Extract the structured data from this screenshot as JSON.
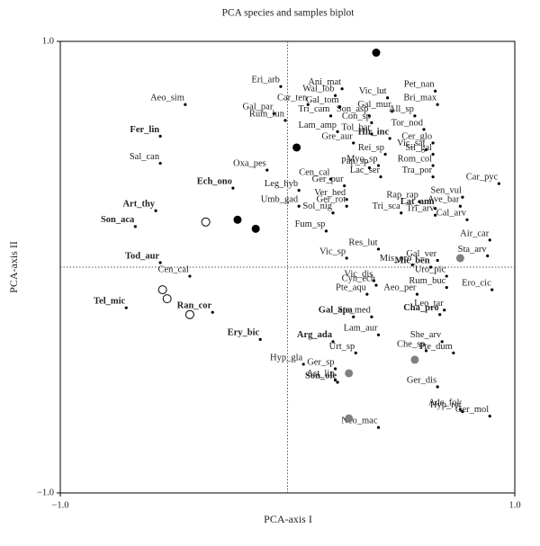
{
  "chart_data": {
    "type": "scatter",
    "title": "PCA species and samples biplot",
    "x_label": "PCA-axis I",
    "y_label": "PCA-axis II",
    "xlim": [
      -1,
      1
    ],
    "ylim": [
      -1,
      1
    ],
    "xticks": [
      {
        "value": -1,
        "label": "−1.0"
      },
      {
        "value": 1,
        "label": "1.0"
      }
    ],
    "yticks": [
      {
        "value": -1,
        "label": "−1.0"
      },
      {
        "value": 1,
        "label": "1.0"
      }
    ],
    "zero_lines": true,
    "series": [
      {
        "marker": "dot",
        "color": "#000000",
        "bold": false,
        "labels": [
          "Aeo_sim",
          "Sal_can",
          "Eri_arb",
          "Ani_mat",
          "Pet_nan",
          "Wal_lob",
          "Vic_lut",
          "Bri_max",
          "Car_ten",
          "Gal_tom",
          "Gal_mur",
          "All_sp",
          "Gal_par",
          "Tri_cam",
          "Son_asp",
          "Con_sp",
          "Rum_lun",
          "Tor_nod",
          "Lam_amp",
          "Tol_bar",
          "Gre_aur",
          "Rei_sp",
          "Cer_glo",
          "Vic_sat",
          "Sil_gal",
          "Myo_sp",
          "Pap_sp",
          "Rom_col",
          "Oxa_pes",
          "Cen_cal",
          "Lac_ser",
          "Tra_por",
          "Ger_pur",
          "Car_pyc",
          "Leg_hyb",
          "Sen_vul",
          "Umb_gad",
          "Ver_hed",
          "Rap_rap",
          "Ger_rot",
          "Ave_bar",
          "Sol_nig",
          "Tri_sca",
          "Tri_arv",
          "Cal_arv",
          "Fum_sp",
          "Air_car",
          "Res_lut",
          "Sta_arv",
          "Gal_ver",
          "Vic_sp",
          "Mis_oro",
          "Uro_pic",
          "Cen_cal",
          "Vic_dis",
          "Rum_buc",
          "Cyn_ech",
          "Ero_cic",
          "Pte_aqu",
          "Aeo_per",
          "Ste_med",
          "Leo_tar",
          "Lam_aur",
          "Urt_sp",
          "She_arv",
          "Che_sp",
          "Pte_dum",
          "Hyp_gla",
          "Ger_sp",
          "Ast_lin",
          "Ger_dis",
          "Ade_fol",
          "Hyp_ref",
          "Ger_mol",
          "Neo_mac"
        ],
        "x": [
          -0.45,
          -0.56,
          -0.03,
          0.24,
          0.65,
          0.21,
          0.44,
          0.66,
          0.09,
          0.23,
          0.46,
          0.56,
          -0.06,
          0.19,
          0.36,
          0.37,
          -0.01,
          0.6,
          0.22,
          0.37,
          0.29,
          0.43,
          0.64,
          0.61,
          0.64,
          0.4,
          0.36,
          0.64,
          -0.09,
          0.19,
          0.41,
          0.64,
          0.25,
          0.93,
          0.05,
          0.77,
          0.05,
          0.26,
          0.58,
          0.26,
          0.76,
          0.2,
          0.5,
          0.65,
          0.79,
          0.17,
          0.89,
          0.4,
          0.88,
          0.66,
          0.26,
          0.55,
          0.7,
          -0.43,
          0.38,
          0.7,
          0.39,
          0.9,
          0.35,
          0.57,
          0.37,
          0.69,
          0.4,
          0.3,
          0.68,
          0.61,
          0.73,
          0.07,
          0.21,
          0.21,
          0.66,
          0.76,
          0.77,
          0.89,
          0.4
        ],
        "values": [
          0.72,
          0.46,
          0.8,
          0.79,
          0.78,
          0.76,
          0.75,
          0.72,
          0.72,
          0.71,
          0.69,
          0.67,
          0.68,
          0.67,
          0.67,
          0.64,
          0.65,
          0.61,
          0.6,
          0.59,
          0.55,
          0.5,
          0.55,
          0.52,
          0.5,
          0.45,
          0.44,
          0.45,
          0.43,
          0.39,
          0.4,
          0.4,
          0.36,
          0.37,
          0.34,
          0.31,
          0.27,
          0.3,
          0.29,
          0.27,
          0.27,
          0.24,
          0.24,
          0.23,
          0.21,
          0.16,
          0.12,
          0.08,
          0.05,
          0.03,
          0.04,
          0.01,
          -0.04,
          -0.04,
          -0.06,
          -0.09,
          -0.08,
          -0.1,
          -0.12,
          -0.12,
          -0.22,
          -0.19,
          -0.3,
          -0.38,
          -0.33,
          -0.37,
          -0.38,
          -0.43,
          -0.45,
          -0.5,
          -0.53,
          -0.63,
          -0.64,
          -0.66,
          -0.71
        ]
      },
      {
        "marker": "dot",
        "color": "#000000",
        "bold": true,
        "labels": [
          "Fer_lin",
          "Art_thy",
          "Son_aca",
          "Tod_aur",
          "Tel_mic",
          "Ran_cor",
          "Ech_ono",
          "Ery_bic",
          "Arg_ada",
          "Gal_apa",
          "Son_ole",
          "Hir_inc",
          "Lat_ann",
          "Mic_ben",
          "Cha_pro"
        ],
        "x": [
          -0.56,
          -0.58,
          -0.67,
          -0.56,
          -0.71,
          -0.33,
          -0.24,
          -0.12,
          0.2,
          0.29,
          0.22,
          0.45,
          0.65,
          0.63,
          0.67
        ],
        "values": [
          0.58,
          0.25,
          0.18,
          0.02,
          -0.18,
          -0.2,
          0.35,
          -0.32,
          -0.33,
          -0.22,
          -0.51,
          0.57,
          0.26,
          0.0,
          -0.21
        ]
      },
      {
        "marker": "circle",
        "color": "#000000",
        "x": [
          0.39,
          0.04,
          -0.22,
          -0.14
        ],
        "values": [
          0.95,
          0.53,
          0.21,
          0.17
        ]
      },
      {
        "marker": "open-circle",
        "color": "#000000",
        "x": [
          -0.36,
          -0.55,
          -0.53,
          -0.43
        ],
        "values": [
          0.2,
          -0.1,
          -0.14,
          -0.21
        ]
      },
      {
        "marker": "circle",
        "color": "#808080",
        "x": [
          0.76,
          0.56,
          0.27,
          0.27
        ],
        "values": [
          0.04,
          -0.41,
          -0.47,
          -0.67
        ]
      }
    ]
  }
}
